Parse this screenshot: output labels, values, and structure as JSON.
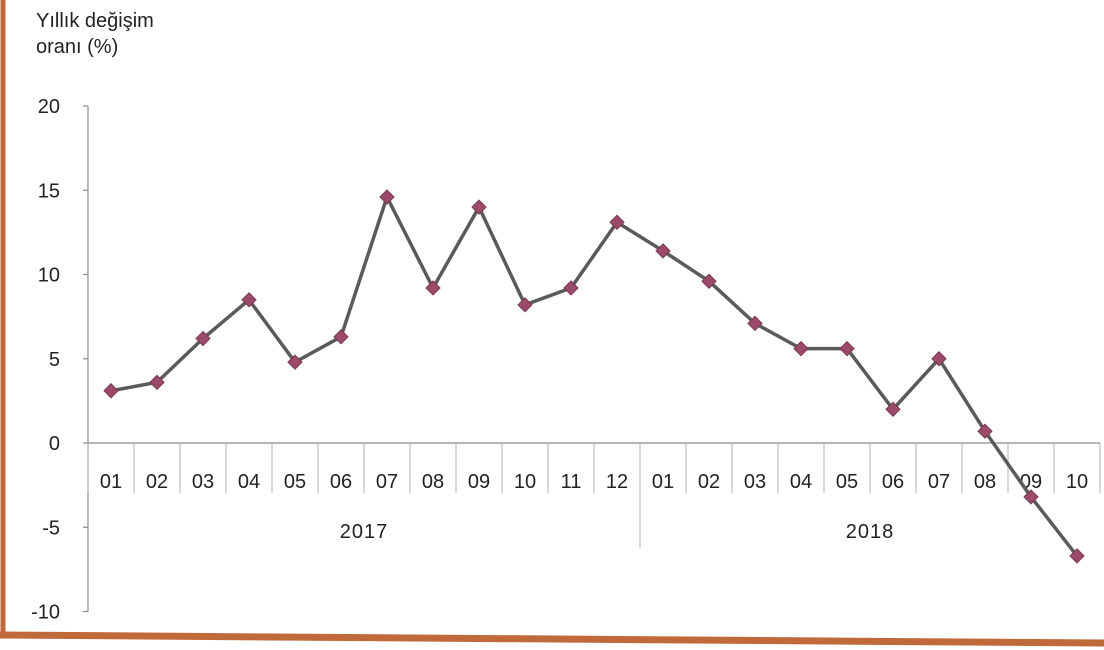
{
  "chart_data": {
    "type": "line",
    "ylabel_lines": [
      "Yıllık değişim",
      "oranı (%)"
    ],
    "xlabel": "",
    "ylim": [
      -10,
      20
    ],
    "yticks": [
      "20",
      "15",
      "10",
      "5",
      "0",
      "-5",
      "-10"
    ],
    "ytick_values": [
      20,
      15,
      10,
      5,
      0,
      -5,
      -10
    ],
    "categories": [
      "01",
      "02",
      "03",
      "04",
      "05",
      "06",
      "07",
      "08",
      "09",
      "10",
      "11",
      "12",
      "01",
      "02",
      "03",
      "04",
      "05",
      "06",
      "07",
      "08",
      "09",
      "10"
    ],
    "groups": [
      {
        "label": "2017",
        "count": 12
      },
      {
        "label": "2018",
        "count": 10
      }
    ],
    "series": [
      {
        "values": [
          3.1,
          3.6,
          6.2,
          8.5,
          4.8,
          6.3,
          14.6,
          9.2,
          14.0,
          8.2,
          9.2,
          13.1,
          11.4,
          9.6,
          7.1,
          5.6,
          5.6,
          2.0,
          5.0,
          0.7,
          -3.2,
          -6.7
        ]
      }
    ],
    "grid": false,
    "colors": {
      "line": "#5a5a5a",
      "marker": "#9b4a6a",
      "frame": "#c0693a"
    }
  }
}
